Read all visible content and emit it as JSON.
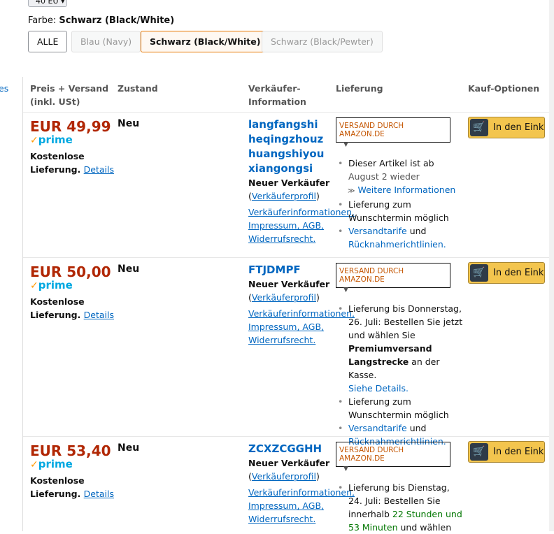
{
  "top_select": "40 EU",
  "color_filter": {
    "label": "Farbe:",
    "selected": "Schwarz (Black/White)",
    "options": [
      "ALLE",
      "Blau (Navy)",
      "Schwarz (Black/White)",
      "Schwarz (Black/Pewter)"
    ]
  },
  "left_edge_text": "es",
  "headers": [
    "Preis + Versand",
    "(inkl. USt)",
    "Zustand",
    "Verkäufer-",
    "Information",
    "Lieferung",
    "Kauf-Optionen"
  ],
  "common": {
    "shipping1": "Kostenlose",
    "shipping2": "Lieferung.",
    "details": "Details",
    "prime": "prime",
    "new_seller": "Neuer Verkäufer",
    "profile": "Verkäuferprofil",
    "info1": "Verkäuferinformationen,",
    "info2": "Impressum, AGB,",
    "info3": "Widerrufsrecht.",
    "dropdown": "VERSAND DURCH AMAZON.DE",
    "cart": "In den Einkaufswagen",
    "wunsch1": "Lieferung zum",
    "wunsch2": "Wunschtermin möglich",
    "tarife": "Versandtarife",
    "und": "und",
    "ruck": "Rücknahmerichtlinien."
  },
  "offers": [
    {
      "price": "EUR 49,99",
      "condition": "Neu",
      "seller": "langfangshiheqingzhouzhuangshiyouxiangongsi",
      "avail1": "Dieser Artikel ist ab",
      "avail2": "August 2 wieder",
      "more": "Weitere Informationen"
    },
    {
      "price": "EUR 50,00",
      "condition": "Neu",
      "seller": "FTJDMPF",
      "d1": "Lieferung bis Donnerstag,",
      "d2": "26. Juli: Bestellen Sie jetzt",
      "d3": "und wählen Sie",
      "d4": "Premiumversand",
      "d5": "Langstrecke",
      "d6": "an der Kasse.",
      "d7": "Siehe Details."
    },
    {
      "price": "EUR 53,40",
      "condition": "Neu",
      "seller": "ZCXZCGGHH",
      "d1": "Lieferung bis Dienstag,",
      "d2": "24. Juli: Bestellen Sie",
      "d3": "innerhalb",
      "d4": "22 Stunden und",
      "d5": "53 Minuten",
      "d6": "und wählen"
    }
  ]
}
